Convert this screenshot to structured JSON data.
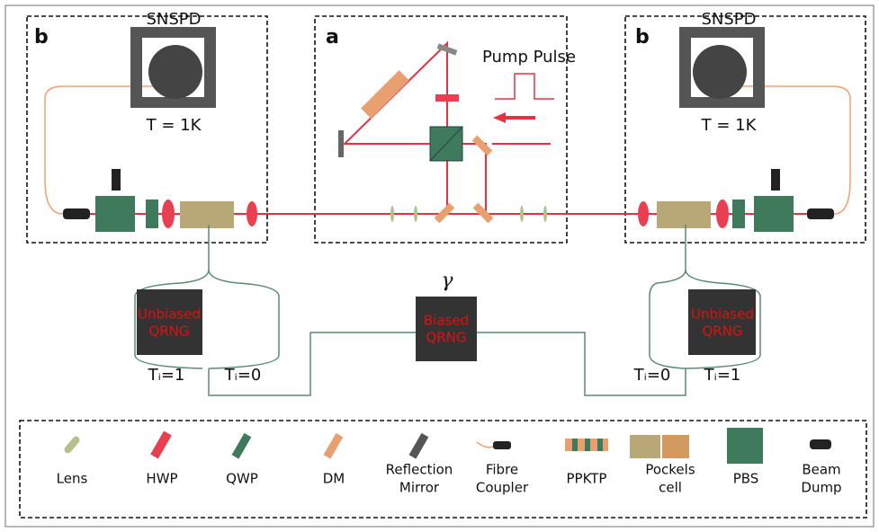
{
  "panels": [
    {
      "label": "b",
      "detector": "SNSPD",
      "temperature": "T = 1K"
    },
    {
      "label": "a",
      "pump": "Pump Pulse"
    },
    {
      "label": "b",
      "detector": "SNSPD",
      "temperature": "T = 1K"
    }
  ],
  "rngs": [
    {
      "lines": [
        "Unbiased",
        "QRNG"
      ],
      "outputs": [
        "Tᵢ=1",
        "Tᵢ=0"
      ]
    },
    {
      "symbol": "γ",
      "lines": [
        "Biased",
        "QRNG"
      ]
    },
    {
      "lines": [
        "Unbiased",
        "QRNG"
      ],
      "outputs": [
        "Tᵢ=0",
        "Tᵢ=1"
      ]
    }
  ],
  "legend": [
    {
      "lines": [
        "Lens"
      ]
    },
    {
      "lines": [
        "HWP"
      ]
    },
    {
      "lines": [
        "QWP"
      ]
    },
    {
      "lines": [
        "DM"
      ]
    },
    {
      "lines": [
        "Reflection",
        "Mirror"
      ]
    },
    {
      "lines": [
        "Fibre",
        "Coupler"
      ]
    },
    {
      "lines": [
        "PPKTP"
      ]
    },
    {
      "lines": [
        "Pockels",
        "cell"
      ]
    },
    {
      "lines": [
        "PBS"
      ]
    },
    {
      "lines": [
        "Beam",
        "Dump"
      ]
    }
  ]
}
